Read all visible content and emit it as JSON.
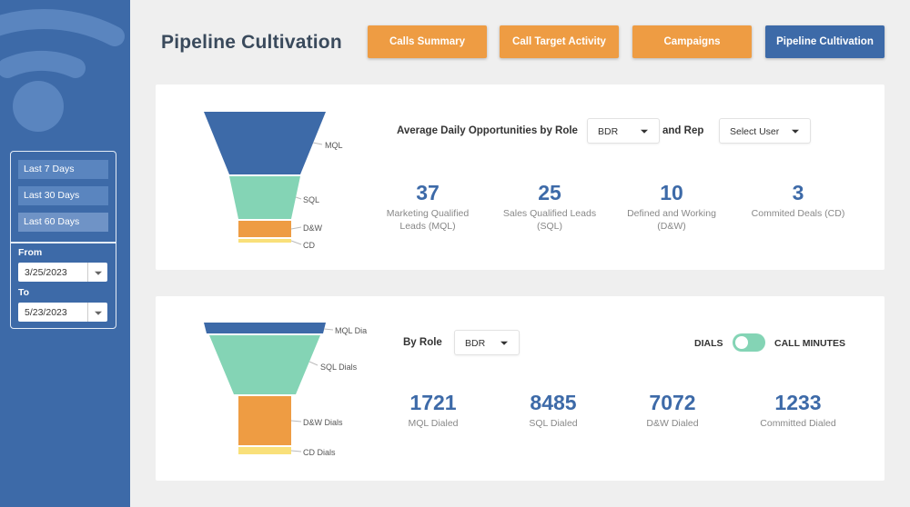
{
  "colors": {
    "brand_blue": "#3d6aa8",
    "orange": "#ee9c43",
    "mql": "#3d6aa8",
    "sql": "#84d4b5",
    "dw": "#ee9c43",
    "cd": "#f9e07a"
  },
  "header": {
    "title": "Pipeline Cultivation",
    "tabs": [
      {
        "label": "Calls Summary"
      },
      {
        "label": "Call Target Activity"
      },
      {
        "label": "Campaigns"
      },
      {
        "label": "Pipeline Cultivation"
      }
    ]
  },
  "sidebar": {
    "ranges": [
      "Last 7 Days",
      "Last 30 Days",
      "Last 60 Days"
    ],
    "from_label": "From",
    "from_value": "3/25/2023",
    "to_label": "To",
    "to_value": "5/23/2023"
  },
  "opportunities": {
    "heading": "Average Daily Opportunities by Role",
    "role_value": "BDR",
    "and_rep_label": "and Rep",
    "user_value": "Select User",
    "funnel_labels": [
      "MQL",
      "SQL",
      "D&W",
      "CD"
    ],
    "metrics": [
      {
        "value": "37",
        "label_line1": "Marketing Qualified",
        "label_line2": "Leads (MQL)"
      },
      {
        "value": "25",
        "label_line1": "Sales Qualified Leads",
        "label_line2": "(SQL)"
      },
      {
        "value": "10",
        "label_line1": "Defined and Working",
        "label_line2": "(D&W)"
      },
      {
        "value": "3",
        "label_line1": "Commited Deals (CD)",
        "label_line2": ""
      }
    ]
  },
  "dials": {
    "by_role_label": "By Role",
    "role_value": "BDR",
    "toggle_left": "DIALS",
    "toggle_right": "CALL MINUTES",
    "funnel_labels": [
      "MQL Dia",
      "SQL Dials",
      "D&W Dials",
      "CD Dials"
    ],
    "metrics": [
      {
        "value": "1721",
        "label": "MQL Dialed"
      },
      {
        "value": "8485",
        "label": "SQL Dialed"
      },
      {
        "value": "7072",
        "label": "D&W Dialed"
      },
      {
        "value": "1233",
        "label": "Committed Dialed"
      }
    ]
  }
}
